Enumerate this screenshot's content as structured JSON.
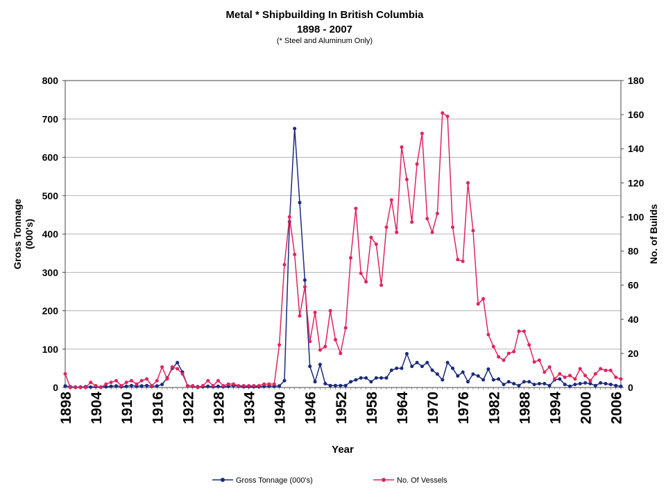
{
  "chart_data": {
    "type": "line",
    "title": "Metal * Shipbuilding In British Columbia",
    "subtitle": "1898 - 2007",
    "note": "(* Steel and Aluminum Only)",
    "xlabel": "Year",
    "ylabel_left": [
      "Gross Tonnage",
      "(000's)"
    ],
    "ylabel_right": "No. of Builds",
    "left_axis": {
      "min": 0,
      "max": 800,
      "ticks": [
        0,
        100,
        200,
        300,
        400,
        500,
        600,
        700,
        800
      ]
    },
    "right_axis": {
      "min": 0,
      "max": 180,
      "ticks": [
        0,
        20,
        40,
        60,
        80,
        100,
        120,
        140,
        160,
        180
      ]
    },
    "x_range": [
      1898,
      2007
    ],
    "x_tick_labels": [
      "1898",
      "1904",
      "1910",
      "1916",
      "1922",
      "1928",
      "1934",
      "1940",
      "1946",
      "1952",
      "1958",
      "1964",
      "1970",
      "1976",
      "1982",
      "1988",
      "1994",
      "2000",
      "2006"
    ],
    "grid": true,
    "legend_position": "bottom",
    "series": [
      {
        "name": "Gross Tonnage (000's)",
        "axis": "left",
        "color": "#1a2a7a",
        "values": [
          4,
          2,
          1,
          1,
          2,
          1,
          2,
          1,
          2,
          3,
          4,
          2,
          3,
          5,
          3,
          4,
          5,
          3,
          4,
          8,
          25,
          50,
          65,
          40,
          4,
          3,
          2,
          2,
          3,
          2,
          3,
          2,
          3,
          5,
          3,
          2,
          2,
          2,
          2,
          3,
          4,
          3,
          4,
          18,
          432,
          675,
          482,
          280,
          55,
          15,
          60,
          10,
          5,
          5,
          5,
          5,
          15,
          20,
          25,
          25,
          15,
          25,
          25,
          25,
          45,
          50,
          50,
          88,
          55,
          65,
          55,
          65,
          45,
          35,
          20,
          65,
          50,
          30,
          40,
          15,
          35,
          30,
          20,
          48,
          20,
          22,
          8,
          15,
          10,
          5,
          15,
          15,
          8,
          10,
          10,
          5,
          20,
          22,
          8,
          3,
          8,
          10,
          12,
          10,
          5,
          12,
          10,
          8,
          5,
          3
        ]
      },
      {
        "name": "No. Of Vessels",
        "axis": "right",
        "color": "#e0245e",
        "values": [
          8,
          0,
          0,
          0,
          0,
          3,
          1,
          0,
          2,
          3,
          4,
          1,
          3,
          4,
          2,
          4,
          5,
          1,
          4,
          12,
          5,
          12,
          11,
          8,
          1,
          1,
          0,
          1,
          4,
          1,
          4,
          1,
          2,
          2,
          1,
          1,
          1,
          1,
          1,
          2,
          2,
          2,
          25,
          72,
          100,
          78,
          42,
          59,
          27,
          44,
          22,
          24,
          45,
          28,
          20,
          35,
          76,
          105,
          67,
          62,
          88,
          84,
          60,
          94,
          110,
          91,
          141,
          122,
          97,
          131,
          149,
          99,
          91,
          102,
          161,
          159,
          94,
          75,
          74,
          120,
          92,
          49,
          52,
          31,
          24,
          18,
          16,
          20,
          21,
          33,
          33,
          25,
          15,
          16,
          9,
          12,
          5,
          8,
          6,
          7,
          5,
          11,
          7,
          4,
          8,
          11,
          10,
          10,
          6,
          5
        ]
      }
    ]
  }
}
